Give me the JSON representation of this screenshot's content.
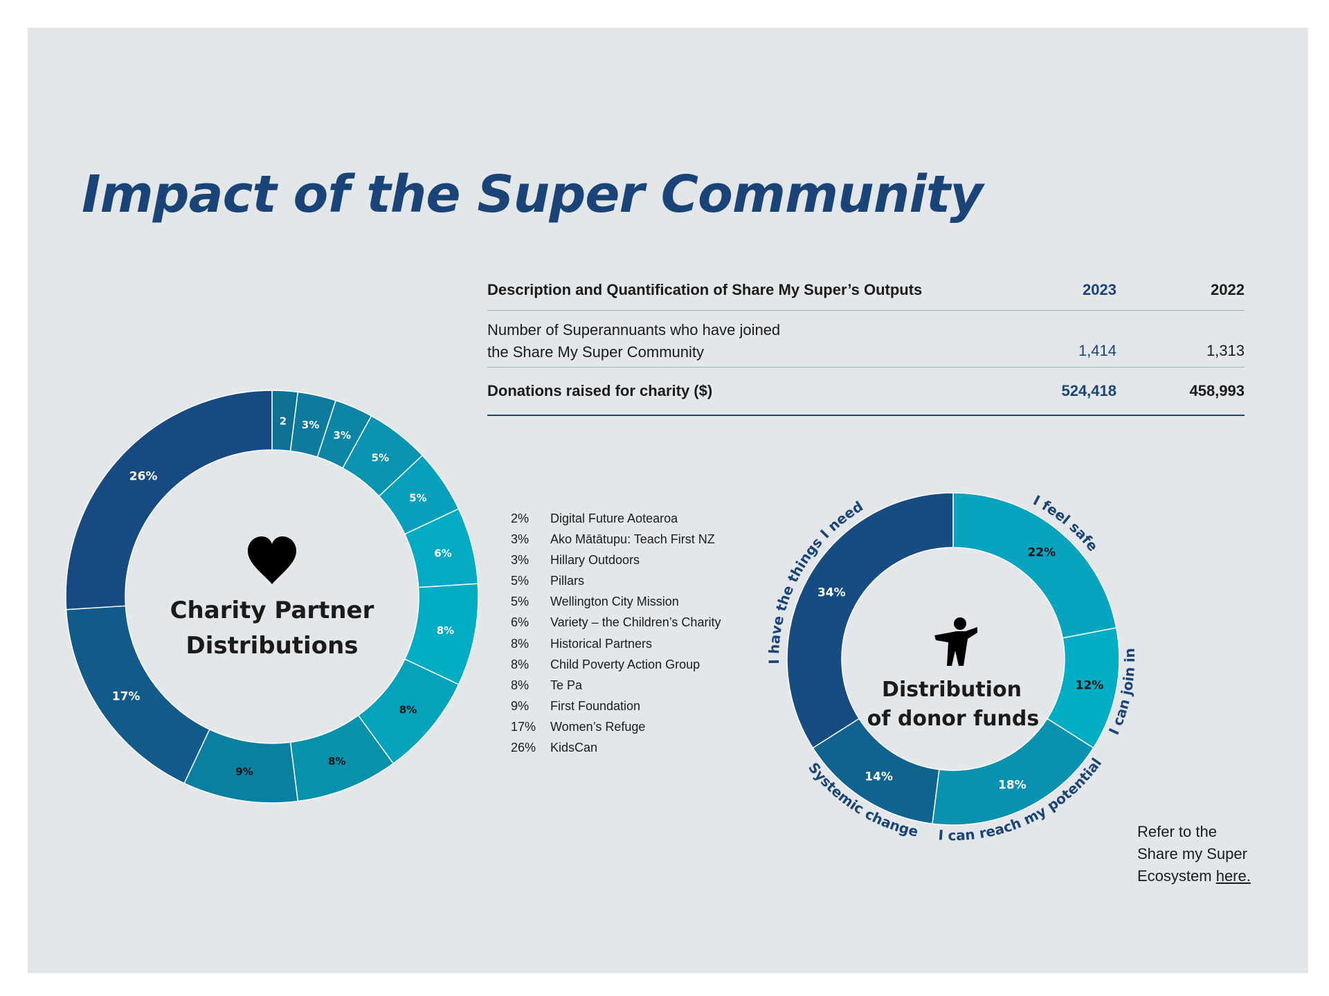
{
  "title": "Impact of the Super Community",
  "table": {
    "headers": [
      "Description and Quantification of Share My Super’s Outputs",
      "2023",
      "2022"
    ],
    "rows": [
      {
        "label_line1": "Number of Superannuants who have joined",
        "label_line2": "the Share My Super Community",
        "v2023": "1,414",
        "v2022": "1,313"
      },
      {
        "label": "Donations raised for charity ($)",
        "v2023": "524,418",
        "v2022": "458,993"
      }
    ]
  },
  "chart_data": [
    {
      "type": "pie",
      "title": "Charity Partner Distributions",
      "title_line1": "Charity Partner",
      "title_line2": "Distributions",
      "icon": "heart-icon",
      "slices": [
        {
          "label": "2%",
          "value": 2,
          "display": "2",
          "name": "Digital Future Aotearoa",
          "color": "#0d7194"
        },
        {
          "label": "3%",
          "value": 3,
          "display": "3%",
          "name": "Ako Mātātupu: Teach First NZ",
          "color": "#0f7b9c"
        },
        {
          "label": "3%",
          "value": 3,
          "display": "3%",
          "name": "Hillary Outdoors",
          "color": "#0d86a6"
        },
        {
          "label": "5%",
          "value": 5,
          "display": "5%",
          "name": "Pillars",
          "color": "#0a94b2"
        },
        {
          "label": "5%",
          "value": 5,
          "display": "5%",
          "name": "Wellington City Mission",
          "color": "#06a0bd"
        },
        {
          "label": "6%",
          "value": 6,
          "display": "6%",
          "name": "Variety – the Children’s Charity",
          "color": "#03aac4"
        },
        {
          "label": "8%",
          "value": 8,
          "display": "8%",
          "name": "Historical Partners",
          "color": "#00adc4"
        },
        {
          "label": "8%",
          "value": 8,
          "display": "8%",
          "name": "Child Poverty Action Group",
          "color": "#04a3bb"
        },
        {
          "label": "8%",
          "value": 8,
          "display": "8%",
          "name": "Te Pa",
          "color": "#0891ab"
        },
        {
          "label": "9%",
          "value": 9,
          "display": "9%",
          "name": "First Foundation",
          "color": "#0b7f9f"
        },
        {
          "label": "17%",
          "value": 17,
          "display": "17%",
          "name": "Women’s Refuge",
          "color": "#125a8a"
        },
        {
          "label": "26%",
          "value": 26,
          "display": "26%",
          "name": "KidsCan",
          "color": "#164a80"
        }
      ]
    },
    {
      "type": "pie",
      "title": "Distribution of donor funds",
      "title_line1": "Distribution",
      "title_line2": "of donor funds",
      "icon": "person-icon",
      "slices": [
        {
          "label": "22%",
          "value": 22,
          "category": "I feel safe",
          "color": "#08a3bf"
        },
        {
          "label": "12%",
          "value": 12,
          "category": "I can join in",
          "color": "#00adc4"
        },
        {
          "label": "18%",
          "value": 18,
          "category": "I can reach my potential",
          "color": "#0a91b0"
        },
        {
          "label": "14%",
          "value": 14,
          "category": "Systemic change",
          "color": "#10638f"
        },
        {
          "label": "34%",
          "value": 34,
          "category": "I have the things I need",
          "color": "#164c82"
        }
      ]
    }
  ],
  "refer": {
    "line1": "Refer to the",
    "line2": "Share my Super",
    "line3": "Ecosystem ",
    "link": "here."
  },
  "colors": {
    "brand_navy": "#1a4478",
    "panel_bg": "#e4e7ea"
  }
}
